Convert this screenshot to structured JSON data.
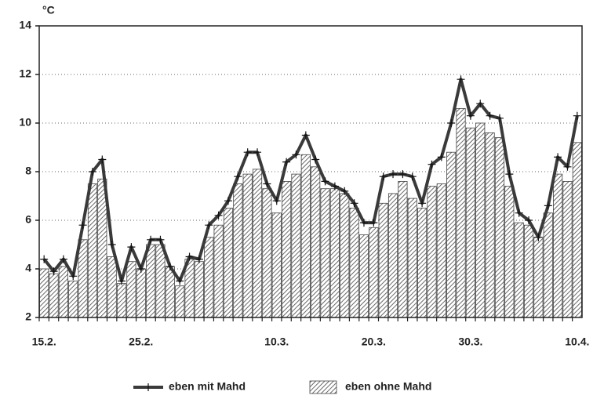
{
  "chart_data": {
    "type": "bar_line",
    "y_label": "°C",
    "categories": [
      "15.2.",
      null,
      null,
      null,
      null,
      null,
      null,
      null,
      null,
      null,
      "25.2.",
      null,
      null,
      null,
      null,
      null,
      null,
      null,
      null,
      null,
      null,
      null,
      null,
      null,
      "10.3.",
      null,
      null,
      null,
      null,
      null,
      null,
      null,
      null,
      null,
      "20.3.",
      null,
      null,
      null,
      null,
      null,
      null,
      null,
      null,
      null,
      "30.3.",
      null,
      null,
      null,
      null,
      null,
      null,
      null,
      null,
      null,
      null,
      "10.4."
    ],
    "series": [
      {
        "name": "eben mit Mahd",
        "type": "line",
        "color": "#3a3a3a",
        "values": [
          4.4,
          3.9,
          4.4,
          3.7,
          5.8,
          8.0,
          8.5,
          5.0,
          3.5,
          4.9,
          4.0,
          5.2,
          5.2,
          4.1,
          3.5,
          4.5,
          4.4,
          5.8,
          6.2,
          6.8,
          7.8,
          8.8,
          8.8,
          7.5,
          6.8,
          8.4,
          8.7,
          9.5,
          8.5,
          7.6,
          7.4,
          7.2,
          6.7,
          5.9,
          5.9,
          7.8,
          7.9,
          7.9,
          7.8,
          6.7,
          8.3,
          8.6,
          10.0,
          11.8,
          10.3,
          10.8,
          10.3,
          10.2,
          7.9,
          6.3,
          6.0,
          5.3,
          6.6,
          8.6,
          8.2,
          10.3
        ]
      },
      {
        "name": "eben ohne Mahd",
        "type": "bar",
        "color": "#444444",
        "values": [
          4.0,
          3.8,
          4.1,
          3.5,
          5.2,
          7.5,
          7.7,
          4.5,
          3.4,
          4.3,
          4.0,
          5.0,
          5.0,
          4.1,
          3.3,
          4.4,
          4.3,
          5.3,
          5.8,
          6.5,
          7.5,
          7.9,
          8.1,
          7.3,
          6.3,
          7.6,
          7.9,
          8.7,
          8.2,
          7.3,
          7.3,
          7.1,
          6.5,
          5.4,
          5.7,
          6.7,
          7.1,
          7.6,
          6.9,
          6.5,
          7.4,
          7.5,
          8.8,
          10.6,
          9.8,
          10.0,
          9.6,
          9.4,
          7.4,
          5.9,
          5.8,
          5.3,
          6.3,
          7.9,
          7.6,
          9.2
        ]
      }
    ],
    "ylim": [
      2,
      14
    ],
    "yticks": [
      2,
      4,
      6,
      8,
      10,
      12,
      14
    ],
    "grid": true
  }
}
